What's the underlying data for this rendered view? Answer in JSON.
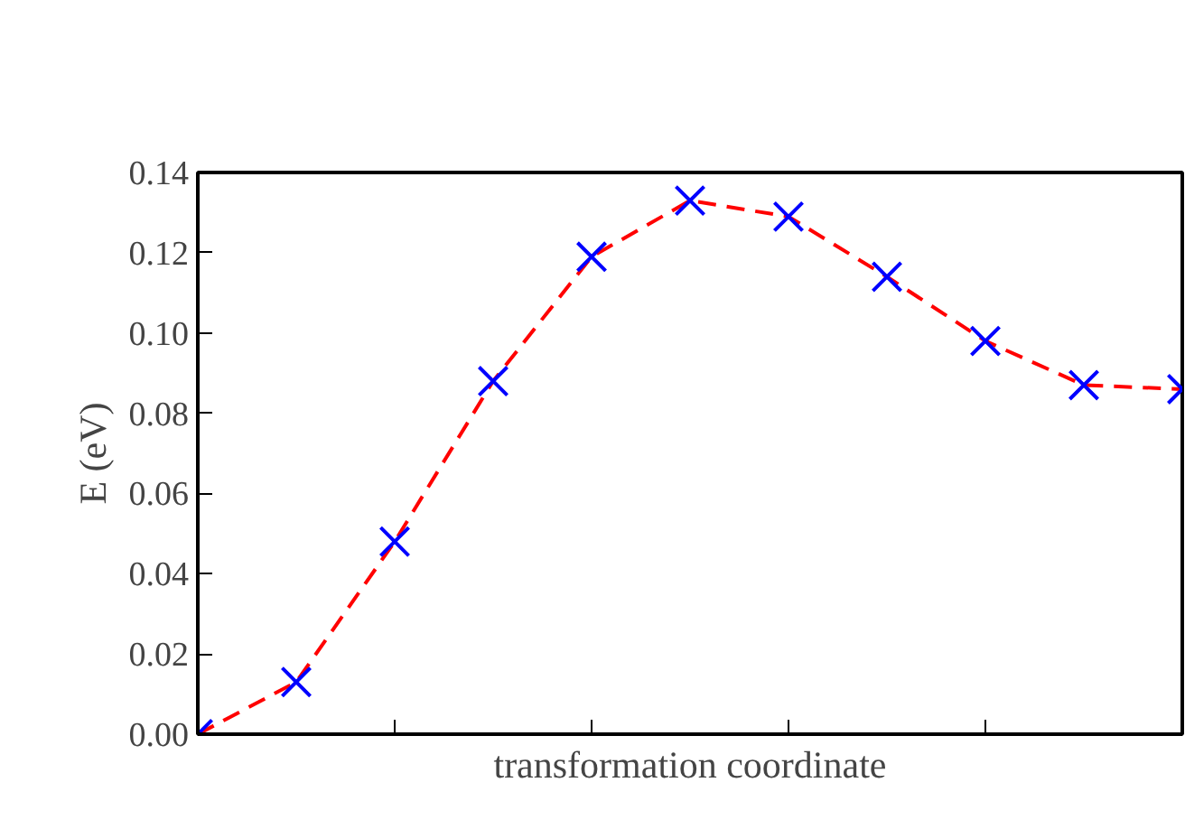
{
  "chart_data": {
    "type": "line",
    "xlabel": "transformation coordinate",
    "ylabel": "E (eV)",
    "categories": [
      null,
      null,
      null,
      null,
      null,
      null,
      null,
      null,
      null,
      null,
      null
    ],
    "series": [
      {
        "color": "#ff0000",
        "line_style": "dashed",
        "marker": "none",
        "values": [
          0,
          0.013,
          0.048,
          0.088,
          0.119,
          0.133,
          0.129,
          0.114,
          0.098,
          0.087,
          0.086
        ]
      },
      {
        "type": "scatter",
        "color": "#0000ff",
        "marker": "cross",
        "values": [
          0,
          0.013,
          0.048,
          0.088,
          0.119,
          0.133,
          0.129,
          0.114,
          0.098,
          0.087,
          0.086
        ]
      }
    ],
    "ylim": [
      0,
      0.14
    ],
    "yticks": [
      {
        "value": 0,
        "label": "0.00"
      },
      {
        "value": 0.02,
        "label": "0.02"
      },
      {
        "value": 0.04,
        "label": "0.04"
      },
      {
        "value": 0.06,
        "label": "0.06"
      },
      {
        "value": 0.08,
        "label": "0.08"
      },
      {
        "value": 0.1,
        "label": "0.10"
      },
      {
        "value": 0.12,
        "label": "0.12"
      },
      {
        "value": 0.14,
        "label": "0.14"
      }
    ],
    "tick_labels": "y",
    "grid": false
  }
}
